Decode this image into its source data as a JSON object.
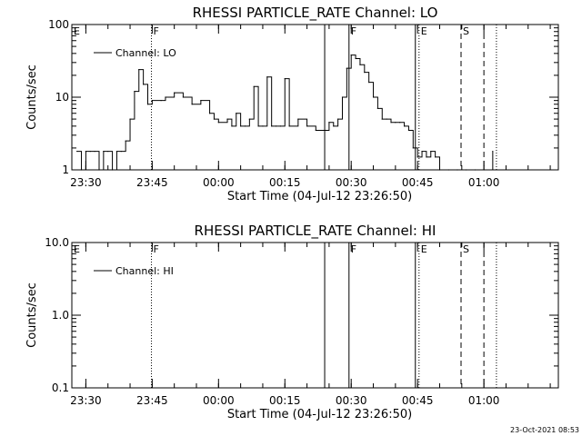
{
  "footer": "23-Oct-2021 08:53",
  "chart_data": [
    {
      "type": "line",
      "title": "RHESSI PARTICLE_RATE Channel: LO",
      "xlabel": "Start Time (04-Jul-12 23:26:50)",
      "ylabel": "Counts/sec",
      "ylog": true,
      "ylim": [
        1,
        100
      ],
      "yticks": [
        {
          "value": 1,
          "label": "1"
        },
        {
          "value": 10,
          "label": "10"
        },
        {
          "value": 100,
          "label": "100"
        }
      ],
      "xlim": [
        "23:26:50",
        "01:16:50"
      ],
      "xticks": [
        {
          "value": "23:30",
          "label": "23:30"
        },
        {
          "value": "23:45",
          "label": "23:45"
        },
        {
          "value": "00:00",
          "label": "00:00"
        },
        {
          "value": "00:15",
          "label": "00:15"
        },
        {
          "value": "00:30",
          "label": "00:30"
        },
        {
          "value": "00:45",
          "label": "00:45"
        },
        {
          "value": "01:00",
          "label": "01:00"
        }
      ],
      "legend": {
        "label": "Channel: LO",
        "position": "top-left"
      },
      "markers": [
        {
          "time": "23:26:50",
          "label": "E",
          "style": "dotted"
        },
        {
          "time": "23:44:50",
          "label": "F",
          "style": "dotted"
        },
        {
          "time": "00:24:00",
          "label": "",
          "style": "solid"
        },
        {
          "time": "00:29:30",
          "label": "F",
          "style": "solid"
        },
        {
          "time": "00:44:30",
          "label": "",
          "style": "solid"
        },
        {
          "time": "00:45:20",
          "label": "E",
          "style": "dotted"
        },
        {
          "time": "00:54:50",
          "label": "S",
          "style": "dashed"
        },
        {
          "time": "01:00:00",
          "label": "",
          "style": "dashed"
        },
        {
          "time": "01:02:50",
          "label": "",
          "style": "dotted"
        }
      ],
      "series": [
        {
          "name": "Channel: LO",
          "x": [
            "23:28:00",
            "23:29:00",
            "23:30:00",
            "23:31:00",
            "23:32:00",
            "23:33:00",
            "23:34:00",
            "23:35:00",
            "23:36:00",
            "23:37:00",
            "23:38:00",
            "23:39:00",
            "23:40:00",
            "23:41:00",
            "23:42:00",
            "23:43:00",
            "23:44:00",
            "23:45:00",
            "23:47:00",
            "23:48:00",
            "23:50:00",
            "23:52:00",
            "23:54:00",
            "23:56:00",
            "23:58:00",
            "23:59:00",
            "00:00:00",
            "00:02:00",
            "00:03:00",
            "00:04:00",
            "00:05:00",
            "00:06:00",
            "00:07:00",
            "00:08:00",
            "00:09:00",
            "00:10:00",
            "00:11:00",
            "00:12:00",
            "00:13:00",
            "00:14:00",
            "00:15:00",
            "00:16:00",
            "00:18:00",
            "00:20:00",
            "00:22:00",
            "00:24:00",
            "00:25:00",
            "00:26:00",
            "00:27:00",
            "00:28:00",
            "00:29:00",
            "00:30:00",
            "00:31:00",
            "00:32:00",
            "00:33:00",
            "00:34:00",
            "00:35:00",
            "00:36:00",
            "00:37:00",
            "00:38:00",
            "00:39:00",
            "00:40:00",
            "00:41:00",
            "00:42:00",
            "00:43:00",
            "00:44:00",
            "00:45:00",
            "00:46:00",
            "00:47:00",
            "00:48:00",
            "00:49:00",
            "00:50:00",
            "00:52:00",
            "00:54:00",
            "00:56:00",
            "00:58:00",
            "01:00:00",
            "01:02:00"
          ],
          "y": [
            1.8,
            1,
            1.8,
            1.8,
            1.8,
            1,
            1.8,
            1.8,
            1,
            1.8,
            1.8,
            2.5,
            5,
            12,
            24,
            15,
            8,
            9,
            9,
            10,
            11.5,
            10,
            8,
            9,
            6,
            5,
            4.5,
            5,
            4,
            6,
            4,
            4,
            5,
            14,
            4,
            4,
            19,
            4,
            4,
            4,
            18,
            4,
            5,
            4,
            3.5,
            3.5,
            4.5,
            4,
            5,
            10,
            25,
            38,
            34,
            28,
            22,
            16,
            10,
            7,
            5,
            5,
            4.5,
            4.5,
            4.5,
            4,
            3.5,
            2,
            1.5,
            1.8,
            1.5,
            1.8,
            1.5,
            1,
            1,
            1,
            1,
            1,
            1,
            1.8
          ]
        }
      ]
    },
    {
      "type": "line",
      "title": "RHESSI PARTICLE_RATE Channel: HI",
      "xlabel": "Start Time (04-Jul-12 23:26:50)",
      "ylabel": "Counts/sec",
      "ylog": true,
      "ylim": [
        0.1,
        10
      ],
      "yticks": [
        {
          "value": 0.1,
          "label": "0.1"
        },
        {
          "value": 1,
          "label": "1.0"
        },
        {
          "value": 10,
          "label": "10.0"
        }
      ],
      "xlim": [
        "23:26:50",
        "01:16:50"
      ],
      "xticks": [
        {
          "value": "23:30",
          "label": "23:30"
        },
        {
          "value": "23:45",
          "label": "23:45"
        },
        {
          "value": "00:00",
          "label": "00:00"
        },
        {
          "value": "00:15",
          "label": "00:15"
        },
        {
          "value": "00:30",
          "label": "00:30"
        },
        {
          "value": "00:45",
          "label": "00:45"
        },
        {
          "value": "01:00",
          "label": "01:00"
        }
      ],
      "legend": {
        "label": "Channel: HI",
        "position": "top-left"
      },
      "markers": [
        {
          "time": "23:26:50",
          "label": "E",
          "style": "dotted"
        },
        {
          "time": "23:44:50",
          "label": "F",
          "style": "dotted"
        },
        {
          "time": "00:24:00",
          "label": "",
          "style": "solid"
        },
        {
          "time": "00:29:30",
          "label": "F",
          "style": "solid"
        },
        {
          "time": "00:44:30",
          "label": "",
          "style": "solid"
        },
        {
          "time": "00:45:20",
          "label": "E",
          "style": "dotted"
        },
        {
          "time": "00:54:50",
          "label": "S",
          "style": "dashed"
        },
        {
          "time": "01:00:00",
          "label": "",
          "style": "dashed"
        },
        {
          "time": "01:02:50",
          "label": "",
          "style": "dotted"
        }
      ],
      "series": [
        {
          "name": "Channel: HI",
          "x": [],
          "y": []
        }
      ]
    }
  ]
}
